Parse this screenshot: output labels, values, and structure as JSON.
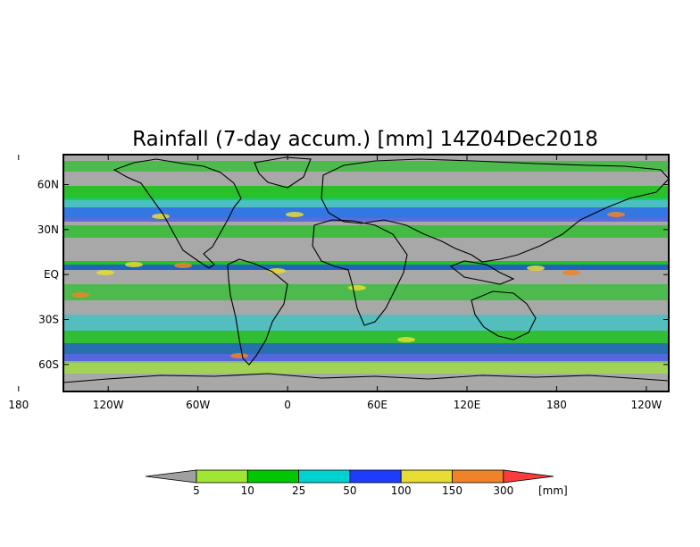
{
  "title": "Rainfall (7-day accum.) [mm] 14Z04Dec2018",
  "map": {
    "projection": "cylindrical equidistant",
    "lon_range": [
      -150,
      255
    ],
    "lat_range": [
      -78,
      80
    ],
    "background": "#a8a8a8",
    "coastline_color": "#000000"
  },
  "x_ticks": [
    "180",
    "120W",
    "60W",
    "0",
    "60E",
    "120E",
    "180",
    "120W"
  ],
  "y_ticks": [
    "60N",
    "30N",
    "EQ",
    "30S",
    "60S"
  ],
  "colorbar": {
    "unit": "[mm]",
    "levels": [
      "5",
      "10",
      "25",
      "50",
      "100",
      "150",
      "300"
    ],
    "colors": [
      "#a0a0a0",
      "#a0e632",
      "#00c800",
      "#00d2d2",
      "#1e3cff",
      "#e6dc32",
      "#f08228",
      "#fa3c3c"
    ]
  }
}
